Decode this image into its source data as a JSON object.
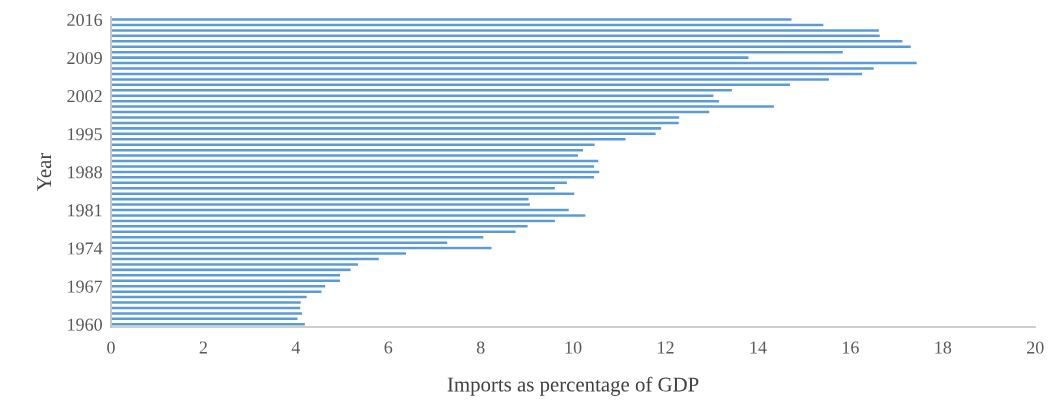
{
  "chart_data": {
    "type": "bar",
    "orientation": "horizontal",
    "xlabel": "Imports as percentage of GDP",
    "ylabel": "Year",
    "categories": [
      "2016",
      null,
      null,
      null,
      null,
      null,
      null,
      "2009",
      null,
      null,
      null,
      null,
      null,
      null,
      "2002",
      null,
      null,
      null,
      null,
      null,
      null,
      "1995",
      null,
      null,
      null,
      null,
      null,
      null,
      "1988",
      null,
      null,
      null,
      null,
      null,
      null,
      "1981",
      null,
      null,
      null,
      null,
      null,
      null,
      "1974",
      null,
      null,
      null,
      null,
      null,
      null,
      "1967",
      null,
      null,
      null,
      null,
      null,
      null,
      "1960"
    ],
    "values": [
      14.74,
      15.43,
      16.63,
      16.65,
      17.14,
      17.32,
      15.85,
      13.81,
      17.45,
      16.52,
      16.27,
      15.55,
      14.71,
      13.45,
      13.05,
      13.17,
      14.36,
      12.96,
      12.31,
      12.3,
      11.92,
      11.8,
      11.15,
      10.48,
      10.23,
      10.12,
      10.56,
      10.47,
      10.58,
      10.47,
      9.88,
      9.62,
      10.04,
      9.05,
      9.08,
      9.92,
      10.28,
      9.62,
      9.03,
      8.77,
      8.07,
      7.29,
      8.25,
      6.4,
      5.81,
      5.36,
      5.2,
      4.97,
      4.97,
      4.65,
      4.57,
      4.25,
      4.12,
      4.11,
      4.15,
      4.05,
      4.21
    ],
    "color": "#5b9bd5",
    "xlim": [
      0,
      20
    ],
    "xticks": [
      0,
      2,
      4,
      6,
      8,
      10,
      12,
      14,
      16,
      18,
      20
    ],
    "grid": false,
    "legend": false
  }
}
